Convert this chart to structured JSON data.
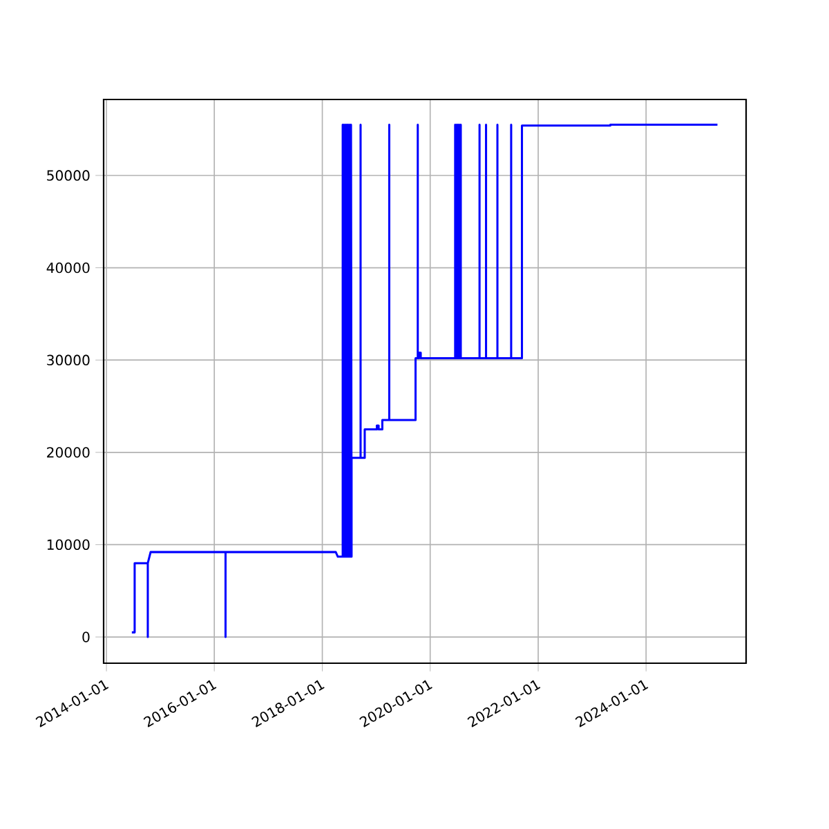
{
  "chart_data": {
    "type": "line",
    "color": "#0000ff",
    "grid": true,
    "xlim": [
      "2013-12-13",
      "2025-11-08"
    ],
    "xticks": [
      "2014-01-01",
      "2016-01-01",
      "2018-01-01",
      "2020-01-01",
      "2022-01-01",
      "2024-01-01"
    ],
    "ylim": [
      -2840,
      58230
    ],
    "yticks": [
      0,
      10000,
      20000,
      30000,
      40000,
      50000
    ],
    "x": [
      "2014-06-22",
      "2014-07-11",
      "2014-07-11",
      "2014-10-08",
      "2014-10-08",
      "2014-10-08",
      "2014-10-27",
      "2016-03-17",
      "2016-03-17",
      "2016-03-17",
      "2018-04-02",
      "2018-04-16",
      "2018-05-19",
      "2018-05-19",
      "2018-05-28",
      "2018-05-28",
      "2018-06-07",
      "2018-06-07",
      "2018-06-16",
      "2018-06-16",
      "2018-06-25",
      "2018-06-25",
      "2018-07-05",
      "2018-07-05",
      "2018-07-14",
      "2018-07-14",
      "2018-07-18",
      "2018-07-18",
      "2018-09-17",
      "2018-09-17",
      "2018-09-17",
      "2018-10-15",
      "2018-10-15",
      "2019-01-05",
      "2019-01-05",
      "2019-01-17",
      "2019-01-17",
      "2019-02-11",
      "2019-02-11",
      "2019-03-30",
      "2019-03-30",
      "2019-03-30",
      "2019-09-24",
      "2019-09-24",
      "2019-10-09",
      "2019-10-09",
      "2019-10-09",
      "2019-10-18",
      "2019-10-18",
      "2019-10-29",
      "2019-10-29",
      "2020-06-18",
      "2020-06-18",
      "2020-06-28",
      "2020-06-28",
      "2020-07-07",
      "2020-07-07",
      "2020-07-16",
      "2020-07-16",
      "2020-07-26",
      "2020-07-26",
      "2020-07-26",
      "2020-11-30",
      "2020-11-30",
      "2020-11-30",
      "2021-01-13",
      "2021-01-13",
      "2021-01-13",
      "2021-03-31",
      "2021-03-31",
      "2021-03-31",
      "2021-07-02",
      "2021-07-02",
      "2021-07-02",
      "2021-09-13",
      "2021-09-13",
      "2023-05-04",
      "2023-05-04",
      "2025-04-28"
    ],
    "values": [
      500,
      500,
      8000,
      8000,
      0,
      8000,
      9200,
      9200,
      0,
      9200,
      9200,
      8700,
      8700,
      55500,
      8700,
      55500,
      8700,
      55500,
      8700,
      55500,
      8700,
      55500,
      8700,
      55500,
      8700,
      55500,
      8700,
      19400,
      19400,
      55500,
      19400,
      19400,
      22500,
      22500,
      22900,
      22900,
      22500,
      22500,
      23500,
      23500,
      55500,
      23500,
      23500,
      30200,
      30200,
      55500,
      30200,
      30200,
      30800,
      30800,
      30200,
      30200,
      55500,
      30200,
      55500,
      30200,
      55500,
      30200,
      55500,
      30200,
      55500,
      30200,
      30200,
      55500,
      30200,
      30200,
      55500,
      30200,
      30200,
      55500,
      30200,
      30200,
      55500,
      30200,
      30200,
      55400,
      55400,
      55500,
      55500
    ]
  }
}
